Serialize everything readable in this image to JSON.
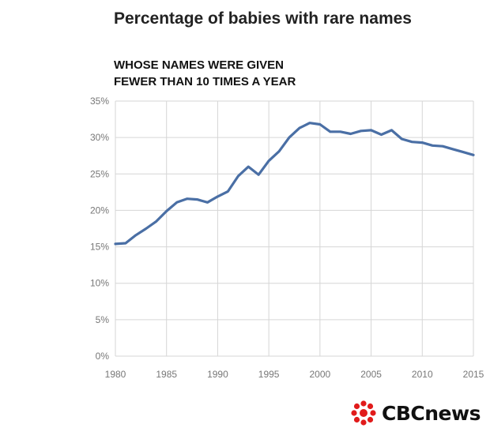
{
  "title": "Percentage of babies with rare names",
  "subtitle_line1": "WHOSE NAMES WERE GIVEN",
  "subtitle_line2": "FEWER THAN 10 TIMES A YEAR",
  "logo_text": "CBCnews",
  "colors": {
    "line": "#4a6fa5",
    "grid": "#d6d6d6",
    "logo": "#e11b1b"
  },
  "chart_data": {
    "type": "line",
    "title": "Percentage of babies with rare names",
    "subtitle": "WHOSE NAMES WERE GIVEN FEWER THAN 10 TIMES A YEAR",
    "xlabel": "",
    "ylabel": "",
    "xlim": [
      1980,
      2015
    ],
    "ylim": [
      0,
      35
    ],
    "grid": true,
    "x_ticks": [
      1980,
      1985,
      1990,
      1995,
      2000,
      2005,
      2010,
      2015
    ],
    "y_ticks": [
      0,
      5,
      10,
      15,
      20,
      25,
      30,
      35
    ],
    "y_tick_labels": [
      "0%",
      "5%",
      "10%",
      "15%",
      "20%",
      "25%",
      "30%",
      "35%"
    ],
    "series": [
      {
        "x": [
          1980,
          1981,
          1982,
          1983,
          1984,
          1985,
          1986,
          1987,
          1988,
          1989,
          1990,
          1991,
          1992,
          1993,
          1994,
          1995,
          1996,
          1997,
          1998,
          1999,
          2000,
          2001,
          2002,
          2003,
          2004,
          2005,
          2006,
          2007,
          2008,
          2009,
          2010,
          2011,
          2012,
          2013,
          2014,
          2015
        ],
        "values": [
          15.4,
          15.5,
          16.6,
          17.5,
          18.5,
          19.9,
          21.1,
          21.6,
          21.5,
          21.1,
          21.9,
          22.6,
          24.7,
          26.0,
          24.9,
          26.8,
          28.1,
          30.0,
          31.3,
          32.0,
          31.8,
          30.8,
          30.8,
          30.5,
          30.9,
          31.0,
          30.4,
          31.0,
          29.8,
          29.4,
          29.3,
          28.9,
          28.8,
          28.4,
          28.0,
          27.6
        ]
      }
    ]
  }
}
